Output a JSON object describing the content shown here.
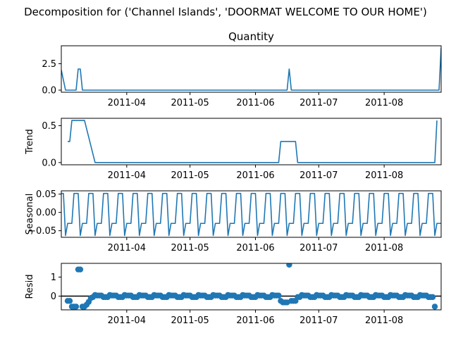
{
  "figure": {
    "suptitle": "Decomposition for ('Channel Islands', 'DOORMAT WELCOME TO OUR HOME')"
  },
  "colors": {
    "series": "#1f77b4",
    "axis": "#000000",
    "zero_line": "#000000"
  },
  "chart_data": [
    {
      "type": "line",
      "title": "Quantity",
      "ylabel": "",
      "xlim": [
        "2011-03-01",
        "2011-08-28"
      ],
      "ylim": [
        -0.2,
        4.2
      ],
      "xticks": [
        {
          "value": "2011-04-01",
          "label": "2011-04"
        },
        {
          "value": "2011-05-01",
          "label": "2011-05"
        },
        {
          "value": "2011-06-01",
          "label": "2011-06"
        },
        {
          "value": "2011-07-01",
          "label": "2011-07"
        },
        {
          "value": "2011-08-01",
          "label": "2011-08"
        }
      ],
      "yticks": [
        {
          "value": 0,
          "label": "0.0"
        },
        {
          "value": 2.5,
          "label": "2.5"
        }
      ],
      "series": [
        {
          "name": "",
          "x": [
            "2011-03-01",
            "2011-03-03",
            "2011-03-08",
            "2011-03-09",
            "2011-03-10",
            "2011-03-11",
            "2011-03-12",
            "2011-06-16",
            "2011-06-17",
            "2011-06-18",
            "2011-08-27",
            "2011-08-28"
          ],
          "y": [
            1.9,
            0,
            0,
            2,
            2,
            0,
            0,
            0,
            2,
            0,
            0,
            4
          ]
        }
      ]
    },
    {
      "type": "line",
      "title": "",
      "ylabel": "Trend",
      "xlim": [
        "2011-03-01",
        "2011-08-28"
      ],
      "ylim": [
        -0.03,
        0.6
      ],
      "xticks": [
        {
          "value": "2011-04-01",
          "label": "2011-04"
        },
        {
          "value": "2011-05-01",
          "label": "2011-05"
        },
        {
          "value": "2011-06-01",
          "label": "2011-06"
        },
        {
          "value": "2011-07-01",
          "label": "2011-07"
        },
        {
          "value": "2011-08-01",
          "label": "2011-08"
        }
      ],
      "yticks": [
        {
          "value": 0,
          "label": "0.0"
        },
        {
          "value": 0.5,
          "label": "0.5"
        }
      ],
      "series": [
        {
          "name": "",
          "x": [
            "2011-03-04",
            "2011-03-05",
            "2011-03-06",
            "2011-03-12",
            "2011-03-17",
            "2011-03-18",
            "2011-06-12",
            "2011-06-13",
            "2011-06-14",
            "2011-06-20",
            "2011-06-21",
            "2011-06-22",
            "2011-08-25",
            "2011-08-26"
          ],
          "y": [
            0.286,
            0.286,
            0.571,
            0.571,
            0,
            0,
            0,
            0.286,
            0.286,
            0.286,
            0,
            0,
            0,
            0.571
          ]
        }
      ]
    },
    {
      "type": "line",
      "title": "",
      "ylabel": "Seasonal",
      "xlim": [
        "2011-03-01",
        "2011-08-28"
      ],
      "ylim": [
        -0.068,
        0.059
      ],
      "xticks": [
        {
          "value": "2011-04-01",
          "label": "2011-04"
        },
        {
          "value": "2011-05-01",
          "label": "2011-05"
        },
        {
          "value": "2011-06-01",
          "label": "2011-06"
        },
        {
          "value": "2011-07-01",
          "label": "2011-07"
        },
        {
          "value": "2011-08-01",
          "label": "2011-08"
        }
      ],
      "yticks": [
        {
          "value": 0.05,
          "label": "0.05"
        },
        {
          "value": 0,
          "label": "0.00"
        },
        {
          "value": -0.05,
          "label": "−0.05"
        }
      ],
      "period_days": 7,
      "cycle_start": "2011-03-01",
      "pattern": [
        0.052,
        0.052,
        -0.063,
        -0.03,
        -0.03,
        -0.03,
        0.052
      ]
    },
    {
      "type": "scatter",
      "title": "",
      "ylabel": "Resid",
      "xlim": [
        "2011-03-01",
        "2011-08-28"
      ],
      "ylim": [
        -0.72,
        1.72
      ],
      "zero_line": 0,
      "xticks": [
        {
          "value": "2011-04-01",
          "label": "2011-04"
        },
        {
          "value": "2011-05-01",
          "label": "2011-05"
        },
        {
          "value": "2011-06-01",
          "label": "2011-06"
        },
        {
          "value": "2011-07-01",
          "label": "2011-07"
        },
        {
          "value": "2011-08-01",
          "label": "2011-08"
        }
      ],
      "yticks": [
        {
          "value": 1,
          "label": "1"
        },
        {
          "value": 0,
          "label": "0"
        }
      ],
      "baseline_pattern": [
        -0.05,
        -0.05,
        0.06,
        0.03,
        0.03,
        0.03,
        -0.05
      ],
      "start": "2011-03-04",
      "end": "2011-08-25",
      "outliers": [
        {
          "x": "2011-03-04",
          "y": -0.25
        },
        {
          "x": "2011-03-05",
          "y": -0.25
        },
        {
          "x": "2011-03-06",
          "y": -0.55
        },
        {
          "x": "2011-03-07",
          "y": -0.55
        },
        {
          "x": "2011-03-08",
          "y": -0.55
        },
        {
          "x": "2011-03-09",
          "y": 1.4
        },
        {
          "x": "2011-03-10",
          "y": 1.4
        },
        {
          "x": "2011-03-11",
          "y": -0.55
        },
        {
          "x": "2011-03-12",
          "y": -0.55
        },
        {
          "x": "2011-03-13",
          "y": -0.45
        },
        {
          "x": "2011-03-14",
          "y": -0.3
        },
        {
          "x": "2011-03-15",
          "y": -0.1
        },
        {
          "x": "2011-06-13",
          "y": -0.25
        },
        {
          "x": "2011-06-14",
          "y": -0.33
        },
        {
          "x": "2011-06-15",
          "y": -0.33
        },
        {
          "x": "2011-06-16",
          "y": -0.33
        },
        {
          "x": "2011-06-17",
          "y": 1.65
        },
        {
          "x": "2011-06-18",
          "y": -0.25
        },
        {
          "x": "2011-06-19",
          "y": -0.25
        },
        {
          "x": "2011-06-20",
          "y": -0.25
        },
        {
          "x": "2011-08-24",
          "y": -0.05
        },
        {
          "x": "2011-08-25",
          "y": -0.55
        }
      ]
    }
  ]
}
